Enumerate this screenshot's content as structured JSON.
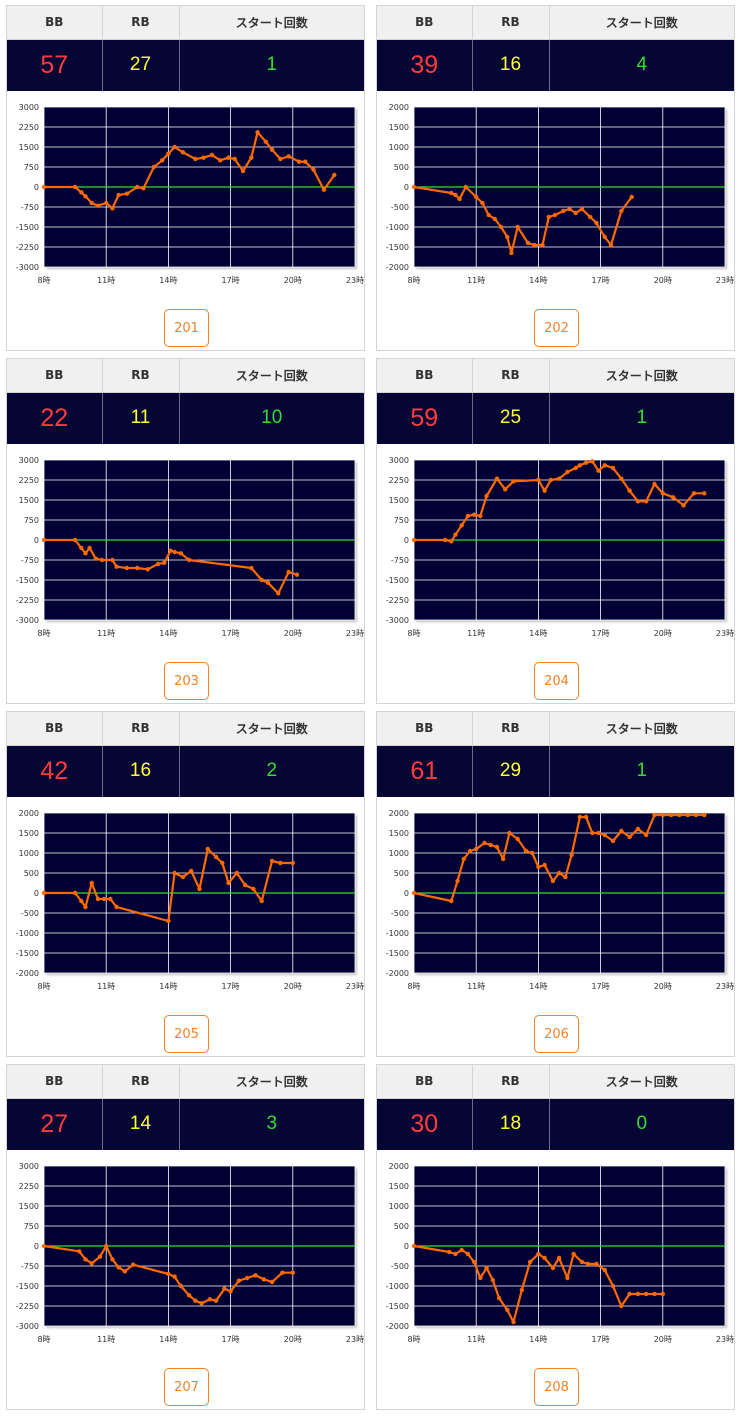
{
  "header_labels": {
    "bb": "BB",
    "rb": "RB",
    "start": "スタート回数"
  },
  "colors": {
    "bb": "#ff3b3b",
    "rb": "#ffff33",
    "start": "#33dd33",
    "plot_bg": "#060634",
    "line": "#ff6a00",
    "zero_line": "#33dd33",
    "button": "#f08228"
  },
  "x_axis": {
    "ticks": [
      "8時",
      "11時",
      "14時",
      "17時",
      "20時",
      "23時"
    ],
    "range": [
      8,
      23
    ]
  },
  "machines": [
    {
      "id": "201",
      "bb": "57",
      "rb": "27",
      "start": "1",
      "chart_data": {
        "type": "line",
        "ylim": [
          -3000,
          3000
        ],
        "yticks": [
          3000,
          2250,
          1500,
          750,
          0,
          -750,
          -1500,
          -2250,
          -3000
        ],
        "x": [
          8,
          9.5,
          9.8,
          10,
          10.3,
          10.6,
          11,
          11.3,
          11.6,
          12,
          12.5,
          12.8,
          13.3,
          13.7,
          14,
          14.3,
          14.7,
          15.3,
          15.7,
          16.1,
          16.5,
          16.9,
          17.2,
          17.6,
          18,
          18.3,
          18.7,
          19,
          19.4,
          19.8,
          20.3,
          20.6,
          21,
          21.5,
          22
        ],
        "y": [
          0,
          0,
          -200,
          -350,
          -600,
          -700,
          -600,
          -800,
          -300,
          -250,
          0,
          -50,
          750,
          1000,
          1250,
          1500,
          1300,
          1050,
          1100,
          1200,
          1000,
          1100,
          1050,
          600,
          1100,
          2050,
          1700,
          1400,
          1050,
          1150,
          950,
          950,
          650,
          -100,
          450
        ]
      }
    },
    {
      "id": "202",
      "bb": "39",
      "rb": "16",
      "start": "4",
      "chart_data": {
        "type": "line",
        "ylim": [
          -2000,
          2000
        ],
        "yticks": [
          2000,
          1500,
          1000,
          500,
          0,
          -500,
          -1000,
          -1500,
          -2000
        ],
        "x": [
          8,
          9.8,
          10,
          10.2,
          10.5,
          11,
          11.3,
          11.6,
          11.9,
          12.2,
          12.5,
          12.7,
          13,
          13.5,
          13.8,
          14.2,
          14.5,
          14.8,
          15.2,
          15.5,
          15.8,
          16.1,
          16.5,
          16.8,
          17.2,
          17.5,
          18,
          18.5
        ],
        "y": [
          0,
          -150,
          -200,
          -300,
          0,
          -250,
          -400,
          -700,
          -800,
          -1000,
          -1250,
          -1650,
          -1000,
          -1400,
          -1450,
          -1450,
          -750,
          -700,
          -600,
          -550,
          -650,
          -550,
          -750,
          -900,
          -1250,
          -1450,
          -600,
          -250
        ]
      }
    },
    {
      "id": "203",
      "bb": "22",
      "rb": "11",
      "start": "10",
      "chart_data": {
        "type": "line",
        "ylim": [
          -3000,
          3000
        ],
        "yticks": [
          3000,
          2250,
          1500,
          750,
          0,
          -750,
          -1500,
          -2250,
          -3000
        ],
        "x": [
          8,
          9.5,
          9.8,
          10,
          10.2,
          10.5,
          10.8,
          11.3,
          11.5,
          12,
          12.5,
          13,
          13.5,
          13.8,
          14.1,
          14.3,
          14.6,
          15,
          18,
          18.5,
          18.8,
          19.3,
          19.8,
          20.2
        ],
        "y": [
          0,
          0,
          -300,
          -500,
          -300,
          -700,
          -750,
          -750,
          -1000,
          -1050,
          -1050,
          -1100,
          -900,
          -850,
          -400,
          -450,
          -500,
          -750,
          -1050,
          -1500,
          -1600,
          -2000,
          -1200,
          -1300
        ]
      }
    },
    {
      "id": "204",
      "bb": "59",
      "rb": "25",
      "start": "1",
      "chart_data": {
        "type": "line",
        "ylim": [
          -3000,
          3000
        ],
        "yticks": [
          3000,
          2250,
          1500,
          750,
          0,
          -750,
          -1500,
          -2250,
          -3000
        ],
        "x": [
          8,
          9.5,
          9.8,
          10,
          10.3,
          10.6,
          10.9,
          11.2,
          11.5,
          12,
          12.4,
          12.8,
          14,
          14.3,
          14.6,
          15,
          15.4,
          15.8,
          16,
          16.3,
          16.6,
          16.9,
          17.2,
          17.6,
          18,
          18.4,
          18.8,
          19.2,
          19.6,
          20,
          20.5,
          21,
          21.5,
          22
        ],
        "y": [
          0,
          0,
          -50,
          200,
          550,
          900,
          950,
          900,
          1650,
          2300,
          1900,
          2200,
          2250,
          1850,
          2250,
          2300,
          2550,
          2700,
          2800,
          2900,
          2950,
          2600,
          2800,
          2700,
          2300,
          1850,
          1450,
          1450,
          2100,
          1750,
          1600,
          1300,
          1750,
          1750
        ]
      }
    },
    {
      "id": "205",
      "bb": "42",
      "rb": "16",
      "start": "2",
      "chart_data": {
        "type": "line",
        "ylim": [
          -2000,
          2000
        ],
        "yticks": [
          2000,
          1500,
          1000,
          500,
          0,
          -500,
          -1000,
          -1500,
          -2000
        ],
        "x": [
          8,
          9.5,
          9.8,
          10,
          10.3,
          10.6,
          10.9,
          11.2,
          11.5,
          14,
          14.3,
          14.7,
          15.1,
          15.5,
          15.9,
          16.3,
          16.6,
          16.9,
          17.3,
          17.7,
          18.1,
          18.5,
          19,
          19.4,
          20
        ],
        "y": [
          0,
          0,
          -200,
          -350,
          250,
          -150,
          -150,
          -150,
          -350,
          -700,
          500,
          400,
          550,
          100,
          1100,
          900,
          750,
          250,
          500,
          200,
          100,
          -200,
          800,
          750,
          750
        ]
      }
    },
    {
      "id": "206",
      "bb": "61",
      "rb": "29",
      "start": "1",
      "chart_data": {
        "type": "line",
        "ylim": [
          -2000,
          2000
        ],
        "yticks": [
          2000,
          1500,
          1000,
          500,
          0,
          -500,
          -1000,
          -1500,
          -2000
        ],
        "x": [
          8,
          9.8,
          10.1,
          10.4,
          10.7,
          11,
          11.4,
          11.7,
          12,
          12.3,
          12.6,
          13,
          13.4,
          13.7,
          14,
          14.3,
          14.7,
          15,
          15.3,
          15.6,
          16,
          16.3,
          16.6,
          16.9,
          17.2,
          17.6,
          18,
          18.4,
          18.8,
          19.2,
          19.6,
          20,
          20.4,
          20.8,
          21.2,
          21.6,
          22
        ],
        "y": [
          0,
          -200,
          300,
          850,
          1050,
          1100,
          1250,
          1200,
          1150,
          850,
          1500,
          1350,
          1050,
          1000,
          650,
          700,
          300,
          500,
          400,
          950,
          1900,
          1900,
          1500,
          1500,
          1450,
          1300,
          1550,
          1400,
          1600,
          1450,
          1950,
          1950,
          1950,
          1950,
          1950,
          1950,
          1950
        ]
      }
    },
    {
      "id": "207",
      "bb": "27",
      "rb": "14",
      "start": "3",
      "chart_data": {
        "type": "line",
        "ylim": [
          -3000,
          3000
        ],
        "yticks": [
          3000,
          2250,
          1500,
          750,
          0,
          -750,
          -1500,
          -2250,
          -3000
        ],
        "x": [
          8,
          9.7,
          10,
          10.3,
          10.7,
          11,
          11.3,
          11.6,
          11.9,
          12.3,
          14,
          14.3,
          14.6,
          15,
          15.3,
          15.6,
          16,
          16.3,
          16.7,
          17,
          17.4,
          17.8,
          18.2,
          18.6,
          19,
          19.5,
          20
        ],
        "y": [
          0,
          -200,
          -500,
          -650,
          -400,
          0,
          -500,
          -800,
          -950,
          -700,
          -1050,
          -1150,
          -1500,
          -1850,
          -2050,
          -2150,
          -2000,
          -2050,
          -1600,
          -1700,
          -1300,
          -1200,
          -1100,
          -1250,
          -1350,
          -1000,
          -1000
        ]
      }
    },
    {
      "id": "208",
      "bb": "30",
      "rb": "18",
      "start": "0",
      "chart_data": {
        "type": "line",
        "ylim": [
          -2000,
          2000
        ],
        "yticks": [
          2000,
          1500,
          1000,
          500,
          0,
          -500,
          -1000,
          -1500,
          -2000
        ],
        "x": [
          8,
          9.7,
          10,
          10.3,
          10.6,
          10.9,
          11.2,
          11.5,
          11.8,
          12.1,
          12.5,
          12.8,
          13.2,
          13.6,
          14,
          14.3,
          14.7,
          15,
          15.4,
          15.7,
          16.1,
          16.4,
          16.8,
          17.2,
          17.6,
          18,
          18.4,
          18.8,
          19.2,
          19.6,
          20
        ],
        "y": [
          0,
          -150,
          -200,
          -100,
          -200,
          -400,
          -800,
          -550,
          -850,
          -1300,
          -1600,
          -1900,
          -1100,
          -400,
          -200,
          -300,
          -550,
          -300,
          -800,
          -200,
          -400,
          -450,
          -450,
          -600,
          -1000,
          -1500,
          -1200,
          -1200,
          -1200,
          -1200,
          -1200
        ]
      }
    }
  ]
}
